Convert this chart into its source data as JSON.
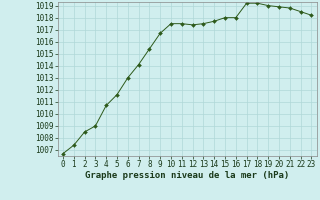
{
  "x": [
    0,
    1,
    2,
    3,
    4,
    5,
    6,
    7,
    8,
    9,
    10,
    11,
    12,
    13,
    14,
    15,
    16,
    17,
    18,
    19,
    20,
    21,
    22,
    23
  ],
  "y": [
    1006.7,
    1007.4,
    1008.5,
    1009.0,
    1010.7,
    1011.6,
    1013.0,
    1014.1,
    1015.4,
    1016.7,
    1017.5,
    1017.5,
    1017.4,
    1017.5,
    1017.7,
    1018.0,
    1018.0,
    1019.2,
    1019.2,
    1019.0,
    1018.9,
    1018.8,
    1018.5,
    1018.2
  ],
  "line_color": "#2d5a1b",
  "marker_color": "#2d5a1b",
  "bg_color": "#d0eeee",
  "grid_color": "#b0d8d8",
  "xlabel": "Graphe pression niveau de la mer (hPa)",
  "ytick_min": 1007,
  "ytick_max": 1019,
  "xtick_labels": [
    "0",
    "1",
    "2",
    "3",
    "4",
    "5",
    "6",
    "7",
    "8",
    "9",
    "10",
    "11",
    "12",
    "13",
    "14",
    "15",
    "16",
    "17",
    "18",
    "19",
    "20",
    "21",
    "22",
    "23"
  ],
  "ylabel_fontsize": 5.5,
  "xlabel_fontsize": 6.5,
  "tick_fontsize": 5.5
}
